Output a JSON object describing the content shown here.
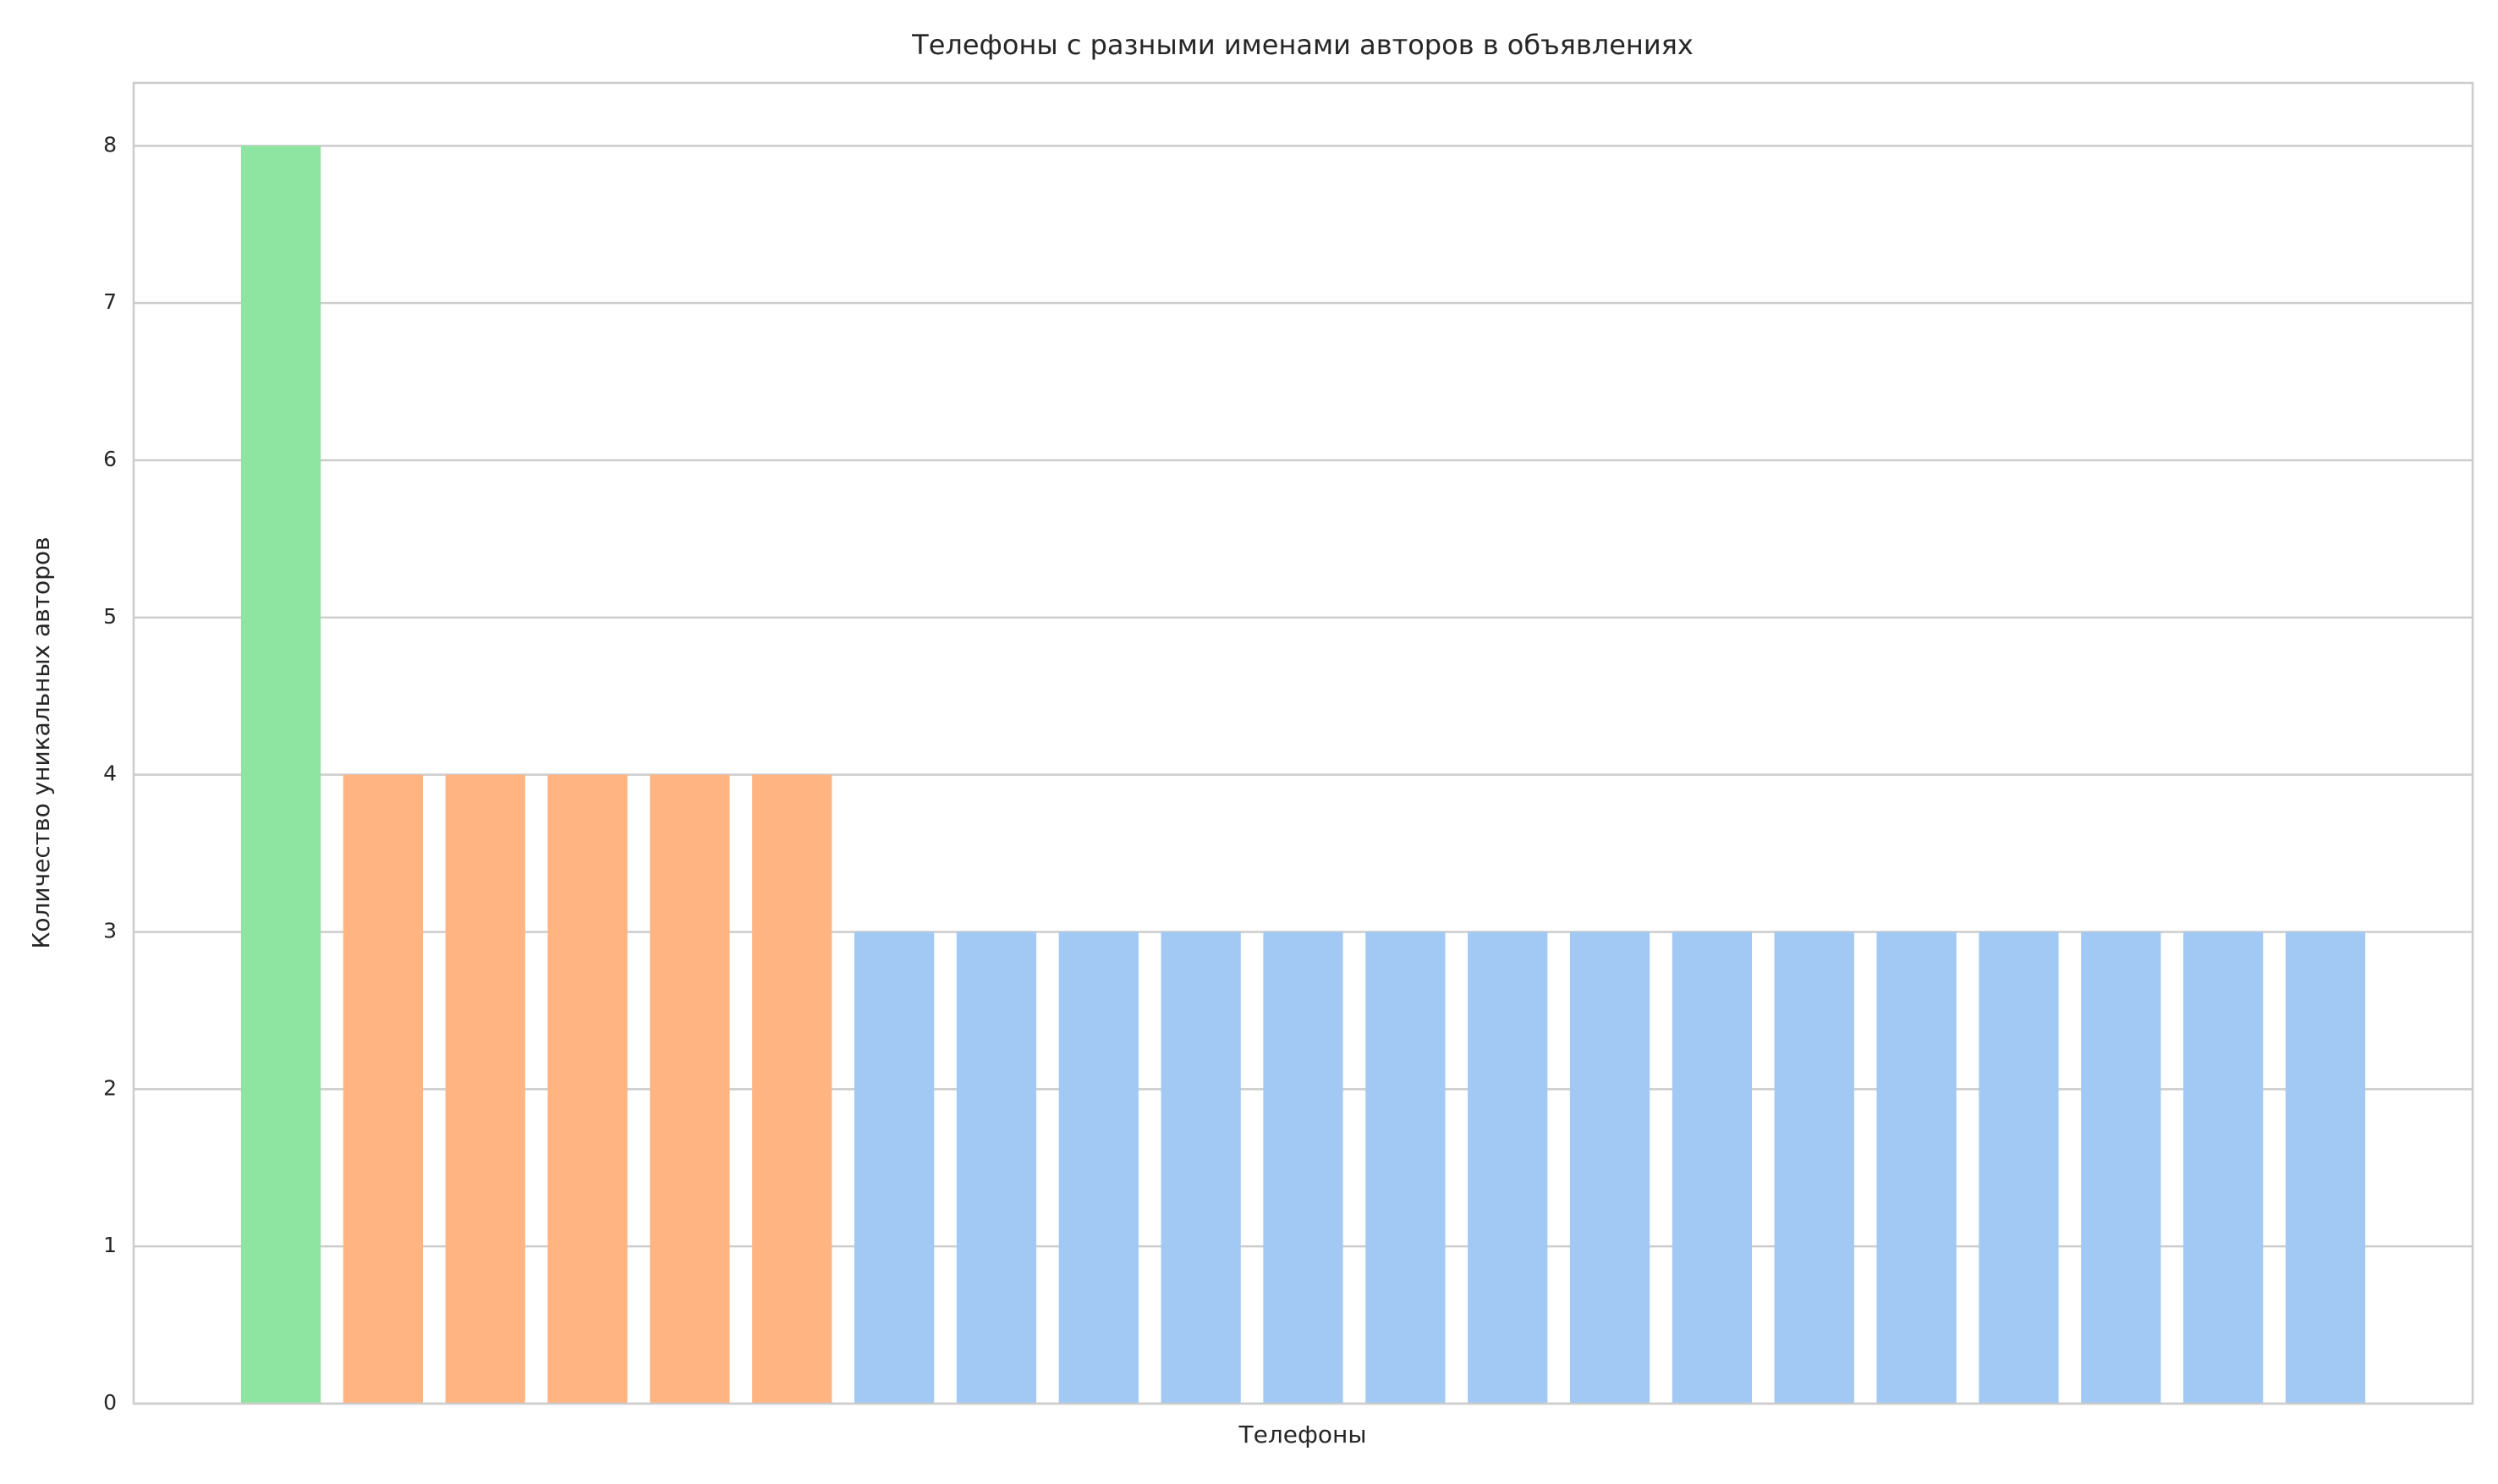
{
  "chart_data": {
    "type": "bar",
    "title": "Телефоны с разными именами авторов в объявлениях",
    "xlabel": "Телефоны",
    "ylabel": "Количество уникальных авторов",
    "categories": [
      null,
      null,
      null,
      null,
      null,
      null,
      null,
      null,
      null,
      null,
      null,
      null,
      null,
      null,
      null,
      null,
      null,
      null,
      null,
      null,
      null
    ],
    "values": [
      8,
      4,
      4,
      4,
      4,
      4,
      3,
      3,
      3,
      3,
      3,
      3,
      3,
      3,
      3,
      3,
      3,
      3,
      3,
      3,
      3
    ],
    "colors": [
      "#8de5a1",
      "#ffb482",
      "#ffb482",
      "#ffb482",
      "#ffb482",
      "#ffb482",
      "#a1c9f4",
      "#a1c9f4",
      "#a1c9f4",
      "#a1c9f4",
      "#a1c9f4",
      "#a1c9f4",
      "#a1c9f4",
      "#a1c9f4",
      "#a1c9f4",
      "#a1c9f4",
      "#a1c9f4",
      "#a1c9f4",
      "#a1c9f4",
      "#a1c9f4",
      "#a1c9f4"
    ],
    "ylim": [
      0,
      8.4
    ],
    "yticks": [
      0,
      1,
      2,
      3,
      4,
      5,
      6,
      7,
      8
    ],
    "grid": true
  }
}
